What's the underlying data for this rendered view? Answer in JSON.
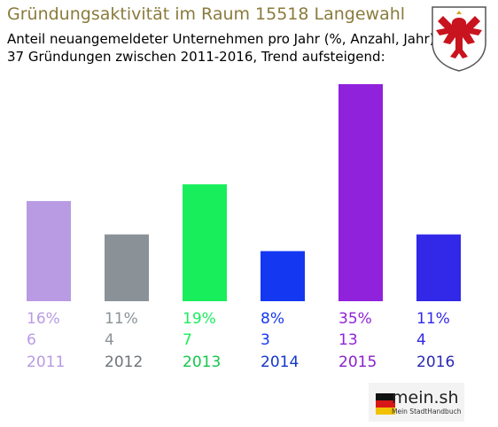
{
  "header": {
    "title": "Gründungsaktivität im Raum 15518 Langewahl",
    "subtitle_line1": "Anteil neuangemeldeter Unternehmen pro Jahr (%, Anzahl, Jahr)",
    "subtitle_line2": "37 Gründungen zwischen 2011-2016, Trend aufsteigend:"
  },
  "coat_of_arms_icon": "eagle-coat-of-arms-icon",
  "logo": {
    "name": "mein.sh",
    "tagline": "Mein StadtHandbuch"
  },
  "chart_data": {
    "type": "bar",
    "categories": [
      "2011",
      "2012",
      "2013",
      "2014",
      "2015",
      "2016"
    ],
    "values": [
      6,
      4,
      7,
      3,
      13,
      4
    ],
    "percent_labels": [
      "16%",
      "11%",
      "19%",
      "8%",
      "35%",
      "11%"
    ],
    "count_labels": [
      "6",
      "4",
      "7",
      "3",
      "13",
      "4"
    ],
    "colors": [
      "#b99be4",
      "#8a9297",
      "#18ee5c",
      "#1437f2",
      "#9022dc",
      "#3228e8"
    ],
    "year_colors": [
      "#b99be4",
      "#6f7479",
      "#17c64c",
      "#1437c8",
      "#8a22c8",
      "#2a2ab4"
    ],
    "title": "",
    "xlabel": "",
    "ylabel": "",
    "grid": false
  }
}
